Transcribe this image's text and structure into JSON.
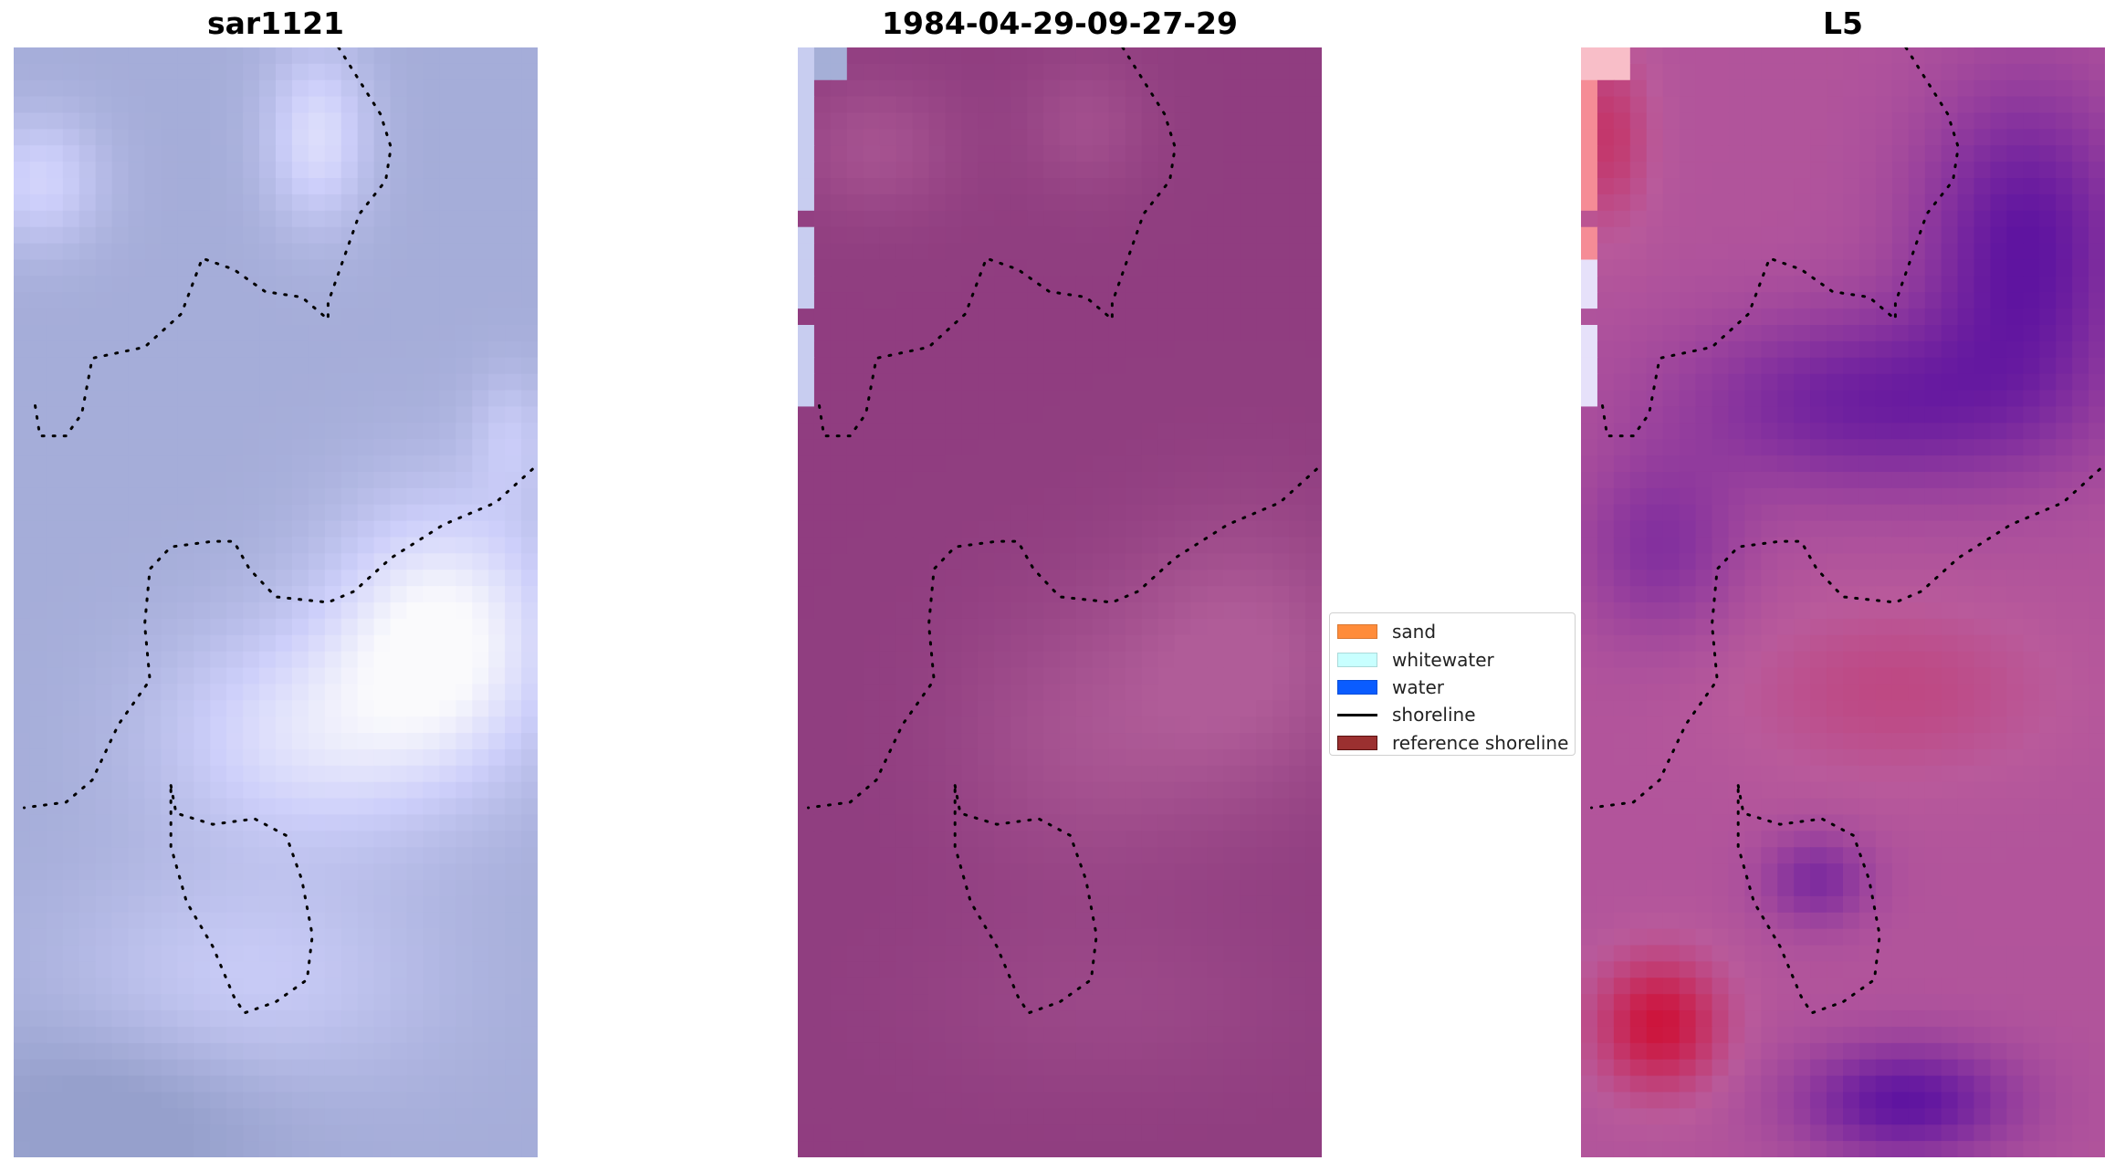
{
  "figure": {
    "panels": [
      {
        "id": "sar",
        "title": "sar1121",
        "colormap": "sar-blue-white"
      },
      {
        "id": "classified",
        "title": "1984-04-29-09-27-29",
        "colormap": "classified-magenta"
      },
      {
        "id": "l5",
        "title": "L5",
        "colormap": "landsat-magenta-purple"
      }
    ],
    "legend": {
      "placement": "center",
      "items": [
        {
          "label": "sand",
          "type": "patch",
          "color": "#ff8c3a"
        },
        {
          "label": "whitewater",
          "type": "patch",
          "color": "#c8ffff"
        },
        {
          "label": "water",
          "type": "patch",
          "color": "#0a5cff"
        },
        {
          "label": "shoreline",
          "type": "line",
          "color": "#000000"
        },
        {
          "label": "reference shoreline",
          "type": "patch",
          "color": "#9b3030"
        }
      ]
    }
  }
}
